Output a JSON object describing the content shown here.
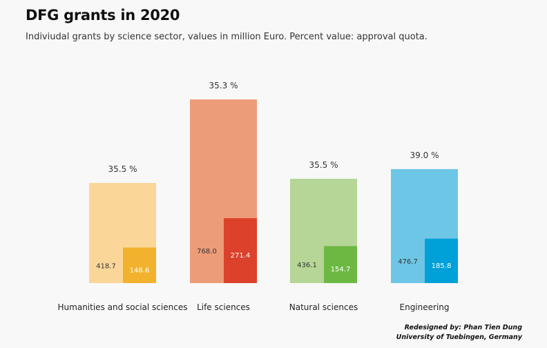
{
  "title": "DFG grants in 2020",
  "subtitle": "Indiviudal grants by science sector, values in million Euro. Percent value: approval quota.",
  "credit": {
    "line1": "Redesigned by: Phan Tien Dung",
    "line2": "University of Tuebingen, Germany"
  },
  "chart_data": {
    "type": "bar",
    "categories": [
      "Humanities and social sciences",
      "Life sciences",
      "Natural sciences",
      "Engineering"
    ],
    "series": [
      {
        "values": [
          418.7,
          768.0,
          436.1,
          476.7
        ]
      },
      {
        "values": [
          148.6,
          271.4,
          154.7,
          185.8
        ]
      }
    ],
    "annotations": [
      "35.5 %",
      "35.3 %",
      "35.5 %",
      "39.0 %"
    ],
    "colors": {
      "requested": [
        "#fbd699",
        "#ed9c78",
        "#b5d696",
        "#6ec6e6"
      ],
      "approved": [
        "#f2b22d",
        "#dc412c",
        "#6db843",
        "#00a0d8"
      ]
    },
    "ylim": [
      0,
      768
    ],
    "grid": false,
    "legend": "none"
  }
}
